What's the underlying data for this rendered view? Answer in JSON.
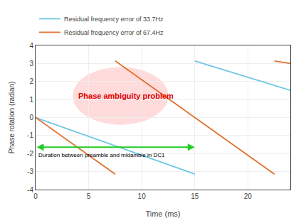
{
  "chart_data": {
    "type": "line",
    "xlabel": "Time (ms)",
    "ylabel": "Phase rotation (radian)",
    "series": [
      {
        "name": "Residual frequency error of 33.7Hz",
        "color": "#6EC6E6",
        "x": [
          0,
          15,
          15,
          15,
          24
        ],
        "values": [
          0,
          -3.14,
          null,
          3.14,
          1.51
        ]
      },
      {
        "name": "Residual frequency error of 67.4Hz",
        "color": "#E07030",
        "x": [
          0,
          7.5,
          7.5,
          7.5,
          22.5,
          22.5,
          22.5,
          24
        ],
        "values": [
          0,
          -3.14,
          null,
          3.14,
          -3.14,
          null,
          3.14,
          3.0
        ]
      }
    ],
    "xlim": [
      0,
      24
    ],
    "ylim": [
      -4,
      4
    ],
    "xticks": [
      0,
      5,
      10,
      15,
      20
    ],
    "yticks": [
      -4,
      -3,
      -2,
      -1,
      0,
      1,
      2,
      3,
      4
    ],
    "grid": true,
    "legend": "upper left",
    "ellipse": {
      "x": 8.0,
      "y": 1.2,
      "width": 9.0,
      "height": 3.2,
      "color": "#FFB0B0"
    },
    "arrow": {
      "x_start": 0.0,
      "x_end": 15.0,
      "y": -1.65,
      "color": "#22CC22"
    },
    "annotations": [
      {
        "text": "Phase ambiguity problem",
        "x": 8.5,
        "y": 1.2,
        "color": "#DD0000",
        "align": "center",
        "bold": true
      },
      {
        "text": "Duration between preamble and midamble in DC1",
        "x": 0.15,
        "y": -1.85,
        "color": "#000000",
        "align": "left"
      }
    ]
  }
}
